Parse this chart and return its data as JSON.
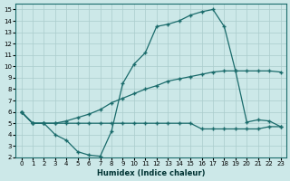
{
  "xlabel": "Humidex (Indice chaleur)",
  "xlim": [
    -0.5,
    23.5
  ],
  "ylim": [
    2,
    15.5
  ],
  "xticks": [
    0,
    1,
    2,
    3,
    4,
    5,
    6,
    7,
    8,
    9,
    10,
    11,
    12,
    13,
    14,
    15,
    16,
    17,
    18,
    19,
    20,
    21,
    22,
    23
  ],
  "yticks": [
    2,
    3,
    4,
    5,
    6,
    7,
    8,
    9,
    10,
    11,
    12,
    13,
    14,
    15
  ],
  "bg_color": "#cce8e8",
  "grid_color": "#aacccc",
  "line_color": "#1a6b6b",
  "line1_x": [
    0,
    1,
    2,
    3,
    4,
    5,
    6,
    7,
    8,
    9,
    10,
    11,
    12,
    13,
    14,
    15,
    16,
    17,
    18,
    19,
    20,
    21,
    22,
    23
  ],
  "line1_y": [
    6.0,
    5.0,
    5.0,
    4.0,
    3.5,
    2.5,
    2.2,
    2.1,
    4.3,
    8.5,
    10.2,
    11.2,
    13.5,
    13.7,
    14.0,
    14.5,
    14.8,
    15.0,
    13.5,
    9.6,
    5.1,
    5.3,
    5.2,
    4.7
  ],
  "line2_x": [
    0,
    1,
    2,
    3,
    4,
    5,
    6,
    7,
    8,
    9,
    10,
    11,
    12,
    13,
    14,
    15,
    16,
    17,
    18,
    19,
    20,
    21,
    22,
    23
  ],
  "line2_y": [
    6.0,
    5.0,
    5.0,
    5.0,
    5.2,
    5.5,
    5.8,
    6.2,
    6.8,
    7.2,
    7.6,
    8.0,
    8.3,
    8.7,
    8.9,
    9.1,
    9.3,
    9.5,
    9.6,
    9.6,
    9.6,
    9.6,
    9.6,
    9.5
  ],
  "line3_x": [
    0,
    1,
    2,
    3,
    4,
    5,
    6,
    7,
    8,
    9,
    10,
    11,
    12,
    13,
    14,
    15,
    16,
    17,
    18,
    19,
    20,
    21,
    22,
    23
  ],
  "line3_y": [
    6.0,
    5.0,
    5.0,
    5.0,
    5.0,
    5.0,
    5.0,
    5.0,
    5.0,
    5.0,
    5.0,
    5.0,
    5.0,
    5.0,
    5.0,
    5.0,
    4.5,
    4.5,
    4.5,
    4.5,
    4.5,
    4.5,
    4.7,
    4.7
  ],
  "marker_size": 3.5,
  "line_width": 0.9
}
